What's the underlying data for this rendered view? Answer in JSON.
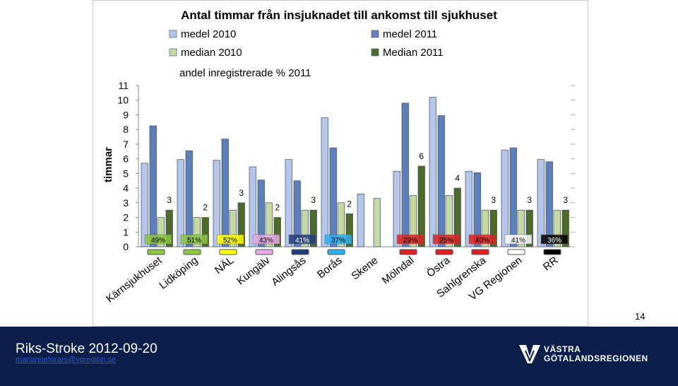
{
  "chart_data": {
    "type": "bar",
    "title": "Antal timmar från insjuknadet till ankomst till sjukhuset",
    "ylabel": "timmar",
    "xlabel": "",
    "ylim": [
      0,
      11
    ],
    "yticks": [
      "0",
      "1",
      "2",
      "3",
      "4",
      "5",
      "6",
      "7",
      "8",
      "9",
      "10",
      "11"
    ],
    "categories": [
      "Kärnsjukhuset",
      "Lidköping",
      "NÄL",
      "Kungälv",
      "Alingsås",
      "Borås",
      "Skene",
      "Mölndal",
      "Östra",
      "Sahlgrenska",
      "VG Regionen",
      "RR"
    ],
    "series": [
      {
        "name": "medel 2010",
        "color": "#b4c6ea",
        "values": [
          5.7,
          5.95,
          5.9,
          5.45,
          5.95,
          8.8,
          3.6,
          5.15,
          10.2,
          5.15,
          6.6,
          5.95
        ]
      },
      {
        "name": "medel 2011",
        "color": "#5d7fba",
        "values": [
          8.25,
          6.55,
          7.35,
          4.55,
          4.5,
          6.75,
          null,
          9.8,
          8.95,
          5.05,
          6.75,
          5.8
        ]
      },
      {
        "name": "median 2010",
        "color": "#c5d9a0",
        "values": [
          2,
          2,
          2.5,
          3,
          2.5,
          3,
          3.3,
          3.5,
          3.5,
          2.5,
          2.5,
          2.5
        ]
      },
      {
        "name": "Median 2011",
        "color": "#4e6b2a",
        "values": [
          2.5,
          2,
          3,
          2,
          2.5,
          2.25,
          null,
          5.5,
          4,
          2.5,
          2.5,
          2.5
        ]
      }
    ],
    "median_2011_labels": [
      "3",
      "2",
      "3",
      "2",
      "3",
      "2",
      "",
      "6",
      "4",
      "3",
      "3",
      "3"
    ],
    "andel_series_name": "andel inregistrerade % 2011",
    "andel_labels": [
      "49%",
      "51%",
      "52%",
      "43%",
      "41%",
      "37%",
      "",
      "29%",
      "25%",
      "40%",
      "41%",
      "36%"
    ],
    "andel_label_colors": [
      "#8cc63f",
      "#8cc63f",
      "#ffff00",
      "#e6a8e6",
      "#1f3b7a",
      "#2ab0f0",
      "",
      "#e02020",
      "#e02020",
      "#e02020",
      "#ffffff",
      "#000000"
    ],
    "legend": "top"
  },
  "page_number": "14",
  "footer": {
    "title": "Riks-Stroke 2012-09-20",
    "email": "marianneforars@vgregion.se",
    "logo_line1": "VÄSTRA",
    "logo_line2": "GÖTALANDSREGIONEN"
  }
}
